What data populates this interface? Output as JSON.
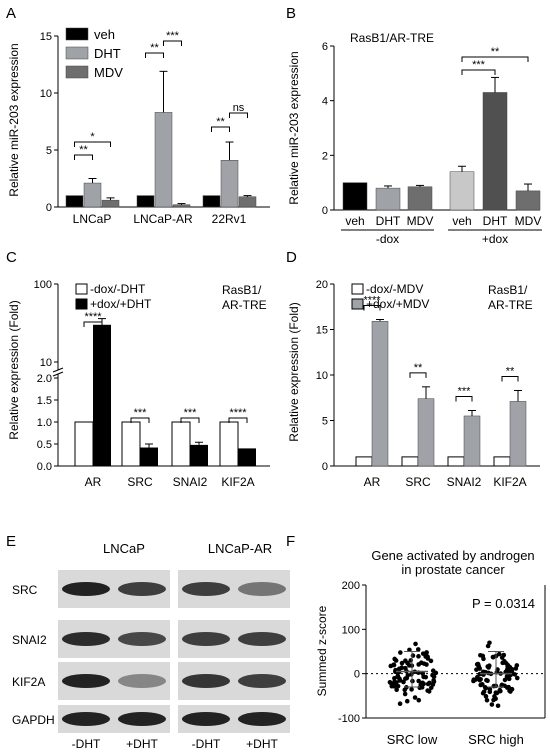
{
  "colors": {
    "veh": "#000000",
    "dht": "#9fa3a8",
    "mdv": "#6e6e6e",
    "veh_light": "#c8c8c8",
    "white": "#ffffff"
  },
  "panel_labels": {
    "A": "A",
    "B": "B",
    "C": "C",
    "D": "D",
    "E": "E",
    "F": "F"
  },
  "chart_data": [
    {
      "panel": "A",
      "type": "bar",
      "ylabel": "Relative miR-203 expression",
      "ylim": [
        0,
        15
      ],
      "yticks": [
        0,
        5,
        10,
        15
      ],
      "categories": [
        "LNCaP",
        "LNCaP-AR",
        "22Rv1"
      ],
      "series": [
        {
          "name": "veh",
          "values": [
            1.0,
            1.0,
            1.0
          ],
          "errors": [
            0,
            0,
            0
          ]
        },
        {
          "name": "DHT",
          "values": [
            2.1,
            8.3,
            4.1
          ],
          "errors": [
            0.4,
            3.6,
            1.6
          ]
        },
        {
          "name": "MDV",
          "values": [
            0.6,
            0.2,
            0.9
          ],
          "errors": [
            0.2,
            0.1,
            0.1
          ]
        }
      ],
      "significance": [
        {
          "group": 0,
          "from": 0,
          "to": 1,
          "label": "**"
        },
        {
          "group": 0,
          "from": 0,
          "to": 2,
          "label": "*"
        },
        {
          "group": 1,
          "from": 0,
          "to": 1,
          "label": "**"
        },
        {
          "group": 1,
          "from": 1,
          "to": 2,
          "label": "***"
        },
        {
          "group": 2,
          "from": 0,
          "to": 1,
          "label": "**"
        },
        {
          "group": 2,
          "from": 1,
          "to": 2,
          "label": "ns"
        }
      ]
    },
    {
      "panel": "B",
      "type": "bar",
      "title": "RasB1/AR-TRE",
      "ylabel": "Relative miR-203 expression",
      "ylim": [
        0,
        6
      ],
      "yticks": [
        0,
        2,
        4,
        6
      ],
      "categories": [
        "veh",
        "DHT",
        "MDV",
        "veh",
        "DHT",
        "MDV"
      ],
      "values": [
        1.0,
        0.8,
        0.85,
        1.4,
        4.3,
        0.7
      ],
      "errors": [
        0,
        0.08,
        0.05,
        0.2,
        0.55,
        0.25
      ],
      "groups": [
        {
          "label": "-dox",
          "from": 0,
          "to": 2
        },
        {
          "label": "+dox",
          "from": 3,
          "to": 5
        }
      ],
      "significance": [
        {
          "from": 3,
          "to": 4,
          "label": "***"
        },
        {
          "from": 3,
          "to": 5,
          "label": "**"
        }
      ]
    },
    {
      "panel": "C",
      "type": "bar",
      "ylabel": "Relative expression (Fold)",
      "annotation": "RasB1/\nAR-TRE",
      "broken_axis": {
        "lower_ticks": [
          0.0,
          0.5,
          1.0,
          1.5,
          2.0
        ],
        "upper_ticks": [
          10,
          100
        ]
      },
      "categories": [
        "AR",
        "SRC",
        "SNAI2",
        "KIF2A"
      ],
      "series": [
        {
          "name": "-dox/-DHT",
          "values": [
            1.0,
            1.0,
            1.0,
            1.0
          ]
        },
        {
          "name": "+dox/+DHT",
          "values": [
            30,
            0.42,
            0.48,
            0.4
          ],
          "errors": [
            6,
            0.08,
            0.06,
            0
          ]
        }
      ],
      "significance": [
        "****",
        "***",
        "***",
        "****"
      ]
    },
    {
      "panel": "D",
      "type": "bar",
      "ylabel": "Relative expression (Fold)",
      "annotation": "RasB1/\nAR-TRE",
      "ylim": [
        0,
        20
      ],
      "yticks": [
        0,
        5,
        10,
        15,
        20
      ],
      "categories": [
        "AR",
        "SRC",
        "SNAI2",
        "KIF2A"
      ],
      "series": [
        {
          "name": "-dox/-MDV",
          "values": [
            1.0,
            1.0,
            1.0,
            1.0
          ]
        },
        {
          "name": "+dox/+MDV",
          "values": [
            15.9,
            7.4,
            5.5,
            7.1
          ],
          "errors": [
            0.2,
            1.3,
            0.6,
            1.2
          ]
        }
      ],
      "significance": [
        "****",
        "**",
        "***",
        "**"
      ]
    },
    {
      "panel": "F",
      "type": "scatter",
      "title": "Gene activated by androgen\nin prostate cancer",
      "ylabel": "Summed z-score",
      "ylim": [
        -100,
        200
      ],
      "yticks": [
        -100,
        0,
        100,
        200
      ],
      "categories": [
        "SRC low",
        "SRC high"
      ],
      "pvalue": "P = 0.0314"
    }
  ],
  "blot": {
    "headers": [
      "LNCaP",
      "LNCaP-AR"
    ],
    "rows": [
      "SRC",
      "SNAI2",
      "KIF2A",
      "GAPDH"
    ],
    "lanes": [
      "-DHT",
      "+DHT",
      "-DHT",
      "+DHT"
    ]
  }
}
